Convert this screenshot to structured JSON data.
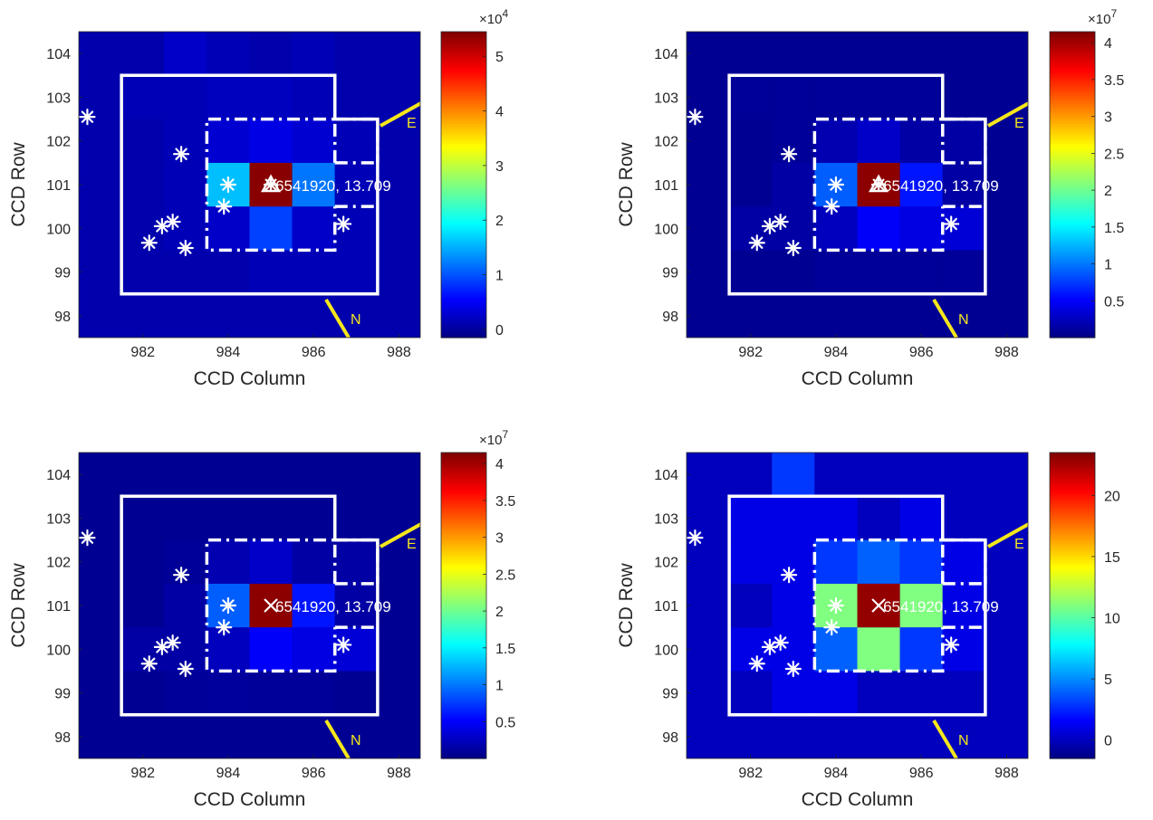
{
  "chart_data": [
    {
      "type": "heatmap",
      "title": "",
      "xlabel": "CCD Column",
      "ylabel": "CCD Row",
      "xlim": [
        980.5,
        988.5
      ],
      "ylim": [
        97.5,
        104.5
      ],
      "x_ticks": [
        "982",
        "984",
        "986",
        "988"
      ],
      "y_ticks": [
        "98",
        "99",
        "100",
        "101",
        "102",
        "103",
        "104"
      ],
      "colorbar": {
        "colormap": "jet",
        "range": [
          -1500,
          54500
        ],
        "exponent_label": "×10^4",
        "exponent_base": "×10",
        "exponent_power": "4",
        "ticks": [
          "0",
          "1",
          "2",
          "3",
          "4",
          "5"
        ],
        "tick_values": [
          0,
          10000,
          20000,
          30000,
          40000,
          50000
        ]
      },
      "grid": {
        "x_start": 981,
        "y_start": 98,
        "rows": [
          [
            1000,
            1000,
            1000,
            1000,
            1000,
            1000,
            1000,
            1000
          ],
          [
            1000,
            1000,
            1000,
            1000,
            1500,
            1500,
            1500,
            1000
          ],
          [
            1000,
            1000,
            1500,
            2500,
            9000,
            2500,
            1500,
            1000
          ],
          [
            1000,
            1000,
            1500,
            16000,
            54000,
            12000,
            1500,
            1000
          ],
          [
            1000,
            1000,
            1500,
            3000,
            4000,
            3000,
            1500,
            1000
          ],
          [
            1000,
            1500,
            1500,
            2000,
            2000,
            1500,
            1000,
            1000
          ],
          [
            1000,
            1000,
            2500,
            1500,
            1000,
            1500,
            1000,
            1000
          ]
        ]
      },
      "target_marker": "triangle",
      "target_label": "6541920, 13.709",
      "target_position": [
        985,
        101
      ],
      "stars": [
        [
          980.7,
          102.55
        ],
        [
          982.9,
          101.7
        ],
        [
          984.0,
          101.0
        ],
        [
          983.9,
          100.5
        ],
        [
          982.15,
          99.67
        ],
        [
          982.45,
          100.05
        ],
        [
          982.7,
          100.15
        ],
        [
          983.0,
          99.55
        ],
        [
          986.7,
          100.1
        ]
      ],
      "aperture_outer": [
        981.5,
        986.5,
        98.5,
        103.5,
        987.5,
        101.5
      ],
      "aperture_inner": [
        983.5,
        986.5,
        99.5,
        102.5,
        987.5,
        101.5,
        100.5
      ],
      "compass": {
        "east_label": "E",
        "north_label": "N"
      }
    },
    {
      "type": "heatmap",
      "title": "",
      "xlabel": "CCD Column",
      "ylabel": "CCD Row",
      "xlim": [
        980.5,
        988.5
      ],
      "ylim": [
        97.5,
        104.5
      ],
      "x_ticks": [
        "982",
        "984",
        "986",
        "988"
      ],
      "y_ticks": [
        "98",
        "99",
        "100",
        "101",
        "102",
        "103",
        "104"
      ],
      "colorbar": {
        "colormap": "jet",
        "range": [
          0,
          41500000
        ],
        "exponent_label": "×10^7",
        "exponent_base": "×10",
        "exponent_power": "7",
        "ticks": [
          "0.5",
          "1",
          "1.5",
          "2",
          "2.5",
          "3",
          "3.5",
          "4"
        ],
        "tick_values": [
          5000000,
          10000000,
          15000000,
          20000000,
          25000000,
          30000000,
          35000000,
          40000000
        ]
      },
      "grid": {
        "x_start": 981,
        "y_start": 98,
        "rows": [
          [
            800000,
            800000,
            800000,
            800000,
            800000,
            800000,
            800000,
            800000
          ],
          [
            800000,
            800000,
            800000,
            1000000,
            1000000,
            1000000,
            1000000,
            800000
          ],
          [
            800000,
            1500000,
            1500000,
            2500000,
            5000000,
            4000000,
            3500000,
            800000
          ],
          [
            800000,
            800000,
            1500000,
            9000000,
            41000000,
            6000000,
            1500000,
            800000
          ],
          [
            800000,
            800000,
            1000000,
            2000000,
            3000000,
            1500000,
            1500000,
            800000
          ],
          [
            800000,
            1000000,
            1000000,
            1000000,
            1000000,
            1000000,
            800000,
            800000
          ],
          [
            800000,
            800000,
            800000,
            800000,
            800000,
            800000,
            800000,
            800000
          ]
        ]
      },
      "target_marker": "triangle",
      "target_label": "6541920, 13.709",
      "target_position": [
        985,
        101
      ],
      "stars": [
        [
          980.7,
          102.55
        ],
        [
          982.9,
          101.7
        ],
        [
          984.0,
          101.0
        ],
        [
          983.9,
          100.5
        ],
        [
          982.15,
          99.67
        ],
        [
          982.45,
          100.05
        ],
        [
          982.7,
          100.15
        ],
        [
          983.0,
          99.55
        ],
        [
          986.7,
          100.1
        ]
      ],
      "aperture_outer": [
        981.5,
        986.5,
        98.5,
        103.5,
        987.5,
        101.5
      ],
      "aperture_inner": [
        983.5,
        986.5,
        99.5,
        102.5,
        987.5,
        101.5,
        100.5
      ],
      "compass": {
        "east_label": "E",
        "north_label": "N"
      }
    },
    {
      "type": "heatmap",
      "title": "",
      "xlabel": "CCD Column",
      "ylabel": "CCD Row",
      "xlim": [
        980.5,
        988.5
      ],
      "ylim": [
        97.5,
        104.5
      ],
      "x_ticks": [
        "982",
        "984",
        "986",
        "988"
      ],
      "y_ticks": [
        "98",
        "99",
        "100",
        "101",
        "102",
        "103",
        "104"
      ],
      "colorbar": {
        "colormap": "jet",
        "range": [
          0,
          41500000
        ],
        "exponent_label": "×10^7",
        "exponent_base": "×10",
        "exponent_power": "7",
        "ticks": [
          "0.5",
          "1",
          "1.5",
          "2",
          "2.5",
          "3",
          "3.5",
          "4"
        ],
        "tick_values": [
          5000000,
          10000000,
          15000000,
          20000000,
          25000000,
          30000000,
          35000000,
          40000000
        ]
      },
      "grid": {
        "x_start": 981,
        "y_start": 98,
        "rows": [
          [
            800000,
            800000,
            800000,
            800000,
            800000,
            800000,
            800000,
            800000
          ],
          [
            800000,
            800000,
            1000000,
            1200000,
            1000000,
            1000000,
            800000,
            800000
          ],
          [
            800000,
            1500000,
            1500000,
            2500000,
            5000000,
            4000000,
            3500000,
            800000
          ],
          [
            800000,
            800000,
            1500000,
            9000000,
            41000000,
            6000000,
            1500000,
            800000
          ],
          [
            800000,
            800000,
            1000000,
            2000000,
            3000000,
            1500000,
            1500000,
            800000
          ],
          [
            800000,
            800000,
            800000,
            800000,
            800000,
            800000,
            800000,
            800000
          ],
          [
            800000,
            800000,
            800000,
            800000,
            800000,
            800000,
            800000,
            800000
          ]
        ]
      },
      "target_marker": "x",
      "target_label": "6541920, 13.709",
      "target_position": [
        985,
        101
      ],
      "stars": [
        [
          980.7,
          102.55
        ],
        [
          982.9,
          101.7
        ],
        [
          984.0,
          101.0
        ],
        [
          983.9,
          100.5
        ],
        [
          982.15,
          99.67
        ],
        [
          982.45,
          100.05
        ],
        [
          982.7,
          100.15
        ],
        [
          983.0,
          99.55
        ],
        [
          986.7,
          100.1
        ]
      ],
      "aperture_outer": [
        981.5,
        986.5,
        98.5,
        103.5,
        987.5,
        101.5
      ],
      "aperture_inner": [
        983.5,
        986.5,
        99.5,
        102.5,
        987.5,
        101.5,
        100.5
      ],
      "compass": {
        "east_label": "E",
        "north_label": "N"
      }
    },
    {
      "type": "heatmap",
      "title": "",
      "xlabel": "CCD Column",
      "ylabel": "CCD Row",
      "xlim": [
        980.5,
        988.5
      ],
      "ylim": [
        97.5,
        104.5
      ],
      "x_ticks": [
        "982",
        "984",
        "986",
        "988"
      ],
      "y_ticks": [
        "98",
        "99",
        "100",
        "101",
        "102",
        "103",
        "104"
      ],
      "colorbar": {
        "colormap": "jet",
        "range": [
          -1.5,
          23.5
        ],
        "exponent_label": "",
        "ticks": [
          "0",
          "5",
          "10",
          "15",
          "20"
        ],
        "tick_values": [
          0,
          5,
          10,
          15,
          20
        ]
      },
      "grid": {
        "x_start": 981,
        "y_start": 98,
        "rows": [
          [
            0,
            0,
            0,
            0,
            0,
            0,
            0,
            0
          ],
          [
            0,
            0,
            1,
            1,
            0,
            0,
            0,
            0
          ],
          [
            0,
            1,
            1,
            4,
            11,
            3,
            1,
            0
          ],
          [
            0,
            0,
            1,
            11,
            23,
            11,
            1,
            0
          ],
          [
            0,
            1,
            1,
            3,
            4,
            3,
            1,
            0
          ],
          [
            0,
            1,
            1,
            1,
            0,
            1,
            0,
            0
          ],
          [
            0,
            0,
            3,
            0,
            0,
            0,
            0,
            0
          ]
        ]
      },
      "target_marker": "x",
      "target_label": "6541920, 13.709",
      "target_position": [
        985,
        101
      ],
      "stars": [
        [
          980.7,
          102.55
        ],
        [
          982.9,
          101.7
        ],
        [
          984.0,
          101.0
        ],
        [
          983.9,
          100.5
        ],
        [
          982.15,
          99.67
        ],
        [
          982.45,
          100.05
        ],
        [
          982.7,
          100.15
        ],
        [
          983.0,
          99.55
        ],
        [
          986.7,
          100.1
        ]
      ],
      "aperture_outer": [
        981.5,
        986.5,
        98.5,
        103.5,
        987.5,
        101.5
      ],
      "aperture_inner": [
        983.5,
        986.5,
        99.5,
        102.5,
        987.5,
        101.5,
        100.5
      ],
      "compass": {
        "east_label": "E",
        "north_label": "N"
      }
    }
  ],
  "colors": {
    "aperture": "#ffffff",
    "stars": "#ffffff",
    "compass": "#f5e71c",
    "axis_text": "#262626"
  }
}
